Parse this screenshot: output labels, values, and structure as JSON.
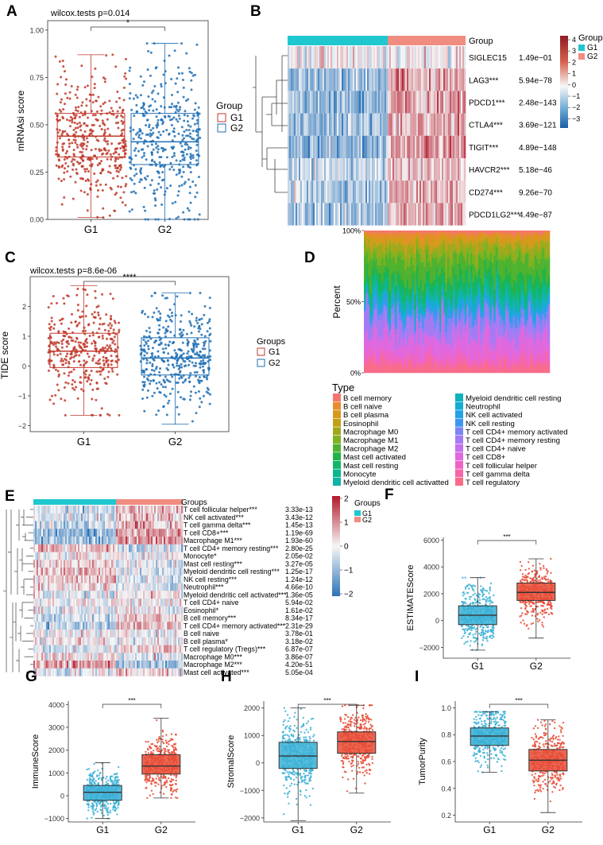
{
  "colors": {
    "g1_red": "#c0392b",
    "g2_blue": "#1f6fb4",
    "est_g1": "#3ab0d6",
    "est_g2": "#e64b35",
    "heat_low": "#2c73b8",
    "heat_mid": "#f7f7f7",
    "heat_high": "#b2182b",
    "anno_g1": "#1fc7cf",
    "anno_g2": "#f08c80"
  },
  "panels": {
    "A": {
      "letter": "A",
      "stat": "wilcox.tests p=0.014",
      "sig": "*",
      "ylabel": "mRNAsi score",
      "legend_title": "Group",
      "legend": [
        "G1",
        "G2"
      ]
    },
    "B": {
      "letter": "B",
      "anno_label": "Group",
      "legend_title": "Group",
      "legend": [
        "G1",
        "G2"
      ]
    },
    "C": {
      "letter": "C",
      "stat": "wilcox.tests p=8.6e-06",
      "sig": "****",
      "ylabel": "TIDE score",
      "legend_title": "Groups",
      "legend": [
        "G1",
        "G2"
      ]
    },
    "D": {
      "letter": "D",
      "ylabel": "Percent",
      "legend_title": "Type"
    },
    "E": {
      "letter": "E",
      "anno_label": "Groups",
      "legend_title": "Groups",
      "legend": [
        "G1",
        "G2"
      ]
    },
    "F": {
      "letter": "F",
      "sig": "***"
    },
    "G": {
      "letter": "G",
      "sig": "***"
    },
    "H": {
      "letter": "H",
      "sig": "***"
    },
    "I": {
      "letter": "I",
      "sig": "***"
    }
  },
  "chart_data": [
    {
      "panel": "A",
      "type": "box",
      "categories": [
        "G1",
        "G2"
      ],
      "ylabel": "mRNAsi score",
      "ylim": [
        0,
        1.05
      ],
      "yticks": [
        "0.00",
        "0.25",
        "0.50",
        "0.75",
        "1.00"
      ],
      "series": [
        {
          "name": "G1",
          "min": 0.01,
          "q1": 0.33,
          "median": 0.44,
          "q3": 0.56,
          "max": 0.87,
          "n": 420
        },
        {
          "name": "G2",
          "min": 0.0,
          "q1": 0.29,
          "median": 0.41,
          "q3": 0.56,
          "max": 0.93,
          "n": 400
        }
      ]
    },
    {
      "panel": "B",
      "type": "heatmap",
      "rows": [
        {
          "label": "SIGLEC15",
          "p": "1.49e−01",
          "g1": 0.0,
          "g2": 0.1
        },
        {
          "label": "LAG3***",
          "p": "5.94e−78",
          "g1": -1.1,
          "g2": 0.9
        },
        {
          "label": "PDCD1***",
          "p": "2.48e−143",
          "g1": -1.2,
          "g2": 1.0
        },
        {
          "label": "CTLA4***",
          "p": "3.69e−121",
          "g1": -1.1,
          "g2": 0.9
        },
        {
          "label": "TIGIT***",
          "p": "4.89e−148",
          "g1": -1.2,
          "g2": 1.0
        },
        {
          "label": "HAVCR2***",
          "p": "5.18e−46",
          "g1": -0.6,
          "g2": 0.5
        },
        {
          "label": "CD274***",
          "p": "9.26e−70",
          "g1": -0.9,
          "g2": 0.8
        },
        {
          "label": "PDCD1LG2***",
          "p": "4.49e−87",
          "g1": -1.0,
          "g2": 0.8
        }
      ],
      "scale_ticks": [
        "4",
        "3",
        "2",
        "1",
        "0",
        "−1",
        "−2",
        "−3"
      ]
    },
    {
      "panel": "C",
      "type": "box",
      "categories": [
        "G1",
        "G2"
      ],
      "ylabel": "TIDE score",
      "ylim": [
        -2.2,
        3.0
      ],
      "yticks": [
        "−2",
        "−1",
        "0",
        "1",
        "2"
      ],
      "series": [
        {
          "name": "G1",
          "min": -1.65,
          "q1": -0.05,
          "median": 0.5,
          "q3": 1.1,
          "max": 2.7,
          "n": 360
        },
        {
          "name": "G2",
          "min": -1.95,
          "q1": -0.3,
          "median": 0.27,
          "q3": 0.95,
          "max": 2.45,
          "n": 400
        }
      ]
    },
    {
      "panel": "D",
      "type": "stacked-bar",
      "ylabel": "Percent",
      "yticks": [
        "0%",
        "50%",
        "100%"
      ],
      "types": [
        {
          "label": "B cell memory",
          "color": "#f4766d",
          "mean": 0.02
        },
        {
          "label": "B cell naive",
          "color": "#e98b2e",
          "mean": 0.03
        },
        {
          "label": "B cell plasma",
          "color": "#d59a1a",
          "mean": 0.04
        },
        {
          "label": "Eosinophil",
          "color": "#c2a11a",
          "mean": 0.01
        },
        {
          "label": "Macrophage M0",
          "color": "#a2a81c",
          "mean": 0.05
        },
        {
          "label": "Macrophage M1",
          "color": "#7fb21f",
          "mean": 0.05
        },
        {
          "label": "Macrophage M2",
          "color": "#4fb22f",
          "mean": 0.12
        },
        {
          "label": "Mast cell activated",
          "color": "#22b348",
          "mean": 0.06
        },
        {
          "label": "Mast cell resting",
          "color": "#12b56d",
          "mean": 0.05
        },
        {
          "label": "Monocyte",
          "color": "#0fb68d",
          "mean": 0.04
        },
        {
          "label": "Myeloid dendritic cell activatted",
          "color": "#10b3a6",
          "mean": 0.02
        },
        {
          "label": "Myeloid dendritic cell resting",
          "color": "#11b1be",
          "mean": 0.02
        },
        {
          "label": "Neutrophil",
          "color": "#14acd3",
          "mean": 0.02
        },
        {
          "label": "NK cell activated",
          "color": "#21a3e4",
          "mean": 0.03
        },
        {
          "label": "NK cell resting",
          "color": "#3e96ef",
          "mean": 0.03
        },
        {
          "label": "T cell CD4+ memory activated",
          "color": "#7c86f4",
          "mean": 0.04
        },
        {
          "label": "T cell CD4+ memory resting",
          "color": "#a57bf3",
          "mean": 0.1
        },
        {
          "label": "T cell CD4+ naive",
          "color": "#c670ed",
          "mean": 0.02
        },
        {
          "label": "T cell CD8+",
          "color": "#df68df",
          "mean": 0.12
        },
        {
          "label": "T cell follicular helper",
          "color": "#ee64c6",
          "mean": 0.05
        },
        {
          "label": "T cell gamma delta",
          "color": "#f666a8",
          "mean": 0.03
        },
        {
          "label": "T cell regulatory",
          "color": "#f86c89",
          "mean": 0.05
        }
      ]
    },
    {
      "panel": "E",
      "type": "heatmap",
      "rows": [
        {
          "label": "T cell follicular helper***",
          "p": "3.33e-13",
          "g1": -0.5,
          "g2": 0.5
        },
        {
          "label": "NK cell activated***",
          "p": "3.43e-12",
          "g1": -0.3,
          "g2": 0.4
        },
        {
          "label": "T cell gamma delta***",
          "p": "1.45e-13",
          "g1": -0.4,
          "g2": 0.5
        },
        {
          "label": "T cell CD8+***",
          "p": "1.19e-69",
          "g1": -0.9,
          "g2": 0.9
        },
        {
          "label": "Macrophage M1***",
          "p": "1.93e-60",
          "g1": -0.9,
          "g2": 0.9
        },
        {
          "label": "T cell CD4+ memory resting***",
          "p": "2.80e-25",
          "g1": 0.5,
          "g2": -0.4
        },
        {
          "label": "Monocyte*",
          "p": "2.05e-02",
          "g1": 0.1,
          "g2": -0.1
        },
        {
          "label": "Mast cell resting***",
          "p": "3.27e-05",
          "g1": 0.3,
          "g2": -0.2
        },
        {
          "label": "Myeloid dendritic cell resting***",
          "p": "1.25e-17",
          "g1": 0.5,
          "g2": -0.4
        },
        {
          "label": "NK cell resting***",
          "p": "1.24e-12",
          "g1": 0.4,
          "g2": -0.3
        },
        {
          "label": "Neutrophil***",
          "p": "4.66e-10",
          "g1": 0.3,
          "g2": -0.3
        },
        {
          "label": "Myeloid dendritic cell activated***",
          "p": "1.36e-05",
          "g1": -0.2,
          "g2": 0.2
        },
        {
          "label": "T cell CD4+ naive",
          "p": "5.94e-02",
          "g1": -0.05,
          "g2": -0.05
        },
        {
          "label": "Eosinophil*",
          "p": "1.61e-02",
          "g1": -0.2,
          "g2": -0.1
        },
        {
          "label": "B cell memory***",
          "p": "8.34e-17",
          "g1": -0.5,
          "g2": 0.4
        },
        {
          "label": "T cell CD4+ memory activated***",
          "p": "2.31e-29",
          "g1": -0.6,
          "g2": 0.6
        },
        {
          "label": "B cell naive",
          "p": "3.78e-01",
          "g1": 0.0,
          "g2": 0.0
        },
        {
          "label": "B cell plasma*",
          "p": "3.18e-02",
          "g1": 0.1,
          "g2": -0.1
        },
        {
          "label": "T cell regulatory (Tregs)***",
          "p": "6.87e-07",
          "g1": -0.3,
          "g2": 0.3
        },
        {
          "label": "Macrophage M0***",
          "p": "3.86e-07",
          "g1": 0.3,
          "g2": -0.3
        },
        {
          "label": "Macrophage M2***",
          "p": "4.20e-51",
          "g1": 0.8,
          "g2": -0.8
        },
        {
          "label": "Mast cell activated***",
          "p": "5.05e-04",
          "g1": -0.2,
          "g2": 0.3
        }
      ],
      "scale_ticks": [
        "2",
        "1",
        "0",
        "−1",
        "−2"
      ]
    },
    {
      "panel": "F",
      "type": "box",
      "categories": [
        "G1",
        "G2"
      ],
      "ylabel": "ESTIMATEScore",
      "ylim": [
        -2800,
        6200
      ],
      "yticks": [
        "−2000",
        "0",
        "2000",
        "4000",
        "6000"
      ],
      "tickvals": [
        -2000,
        0,
        2000,
        4000,
        6000
      ],
      "series": [
        {
          "name": "G1",
          "min": -2200,
          "q1": -300,
          "median": 400,
          "q3": 1100,
          "max": 3200,
          "n": 420
        },
        {
          "name": "G2",
          "min": -1300,
          "q1": 1500,
          "median": 2100,
          "q3": 2800,
          "max": 4600,
          "n": 400
        }
      ]
    },
    {
      "panel": "G",
      "type": "box",
      "categories": [
        "G1",
        "G2"
      ],
      "ylabel": "ImmuneScore",
      "ylim": [
        -1150,
        4150
      ],
      "yticks": [
        "−1000",
        "0",
        "1000",
        "2000",
        "3000",
        "4000"
      ],
      "tickvals": [
        -1000,
        0,
        1000,
        2000,
        3000,
        4000
      ],
      "series": [
        {
          "name": "G1",
          "min": -1000,
          "q1": -200,
          "median": 150,
          "q3": 450,
          "max": 1450,
          "n": 420
        },
        {
          "name": "G2",
          "min": -100,
          "q1": 950,
          "median": 1300,
          "q3": 1800,
          "max": 3400,
          "n": 400
        }
      ]
    },
    {
      "panel": "H",
      "type": "box",
      "categories": [
        "G1",
        "G2"
      ],
      "ylabel": "StromalScore",
      "ylim": [
        -2150,
        2250
      ],
      "yticks": [
        "−2000",
        "−1000",
        "0",
        "1000",
        "2000"
      ],
      "tickvals": [
        -2000,
        -1000,
        0,
        1000,
        2000
      ],
      "series": [
        {
          "name": "G1",
          "min": -2100,
          "q1": -200,
          "median": 250,
          "q3": 750,
          "max": 2000,
          "n": 420
        },
        {
          "name": "G2",
          "min": -1100,
          "q1": 350,
          "median": 780,
          "q3": 1130,
          "max": 2100,
          "n": 400
        }
      ]
    },
    {
      "panel": "I",
      "type": "box",
      "categories": [
        "G1",
        "G2"
      ],
      "ylabel": "TumorPurity",
      "ylim": [
        0.15,
        1.05
      ],
      "yticks": [
        "0.2",
        "0.4",
        "0.6",
        "0.8",
        "1.0"
      ],
      "tickvals": [
        0.2,
        0.4,
        0.6,
        0.8,
        1.0
      ],
      "series": [
        {
          "name": "G1",
          "min": 0.52,
          "q1": 0.72,
          "median": 0.79,
          "q3": 0.85,
          "max": 0.97,
          "n": 420
        },
        {
          "name": "G2",
          "min": 0.22,
          "q1": 0.53,
          "median": 0.61,
          "q3": 0.69,
          "max": 0.91,
          "n": 400
        }
      ]
    }
  ]
}
